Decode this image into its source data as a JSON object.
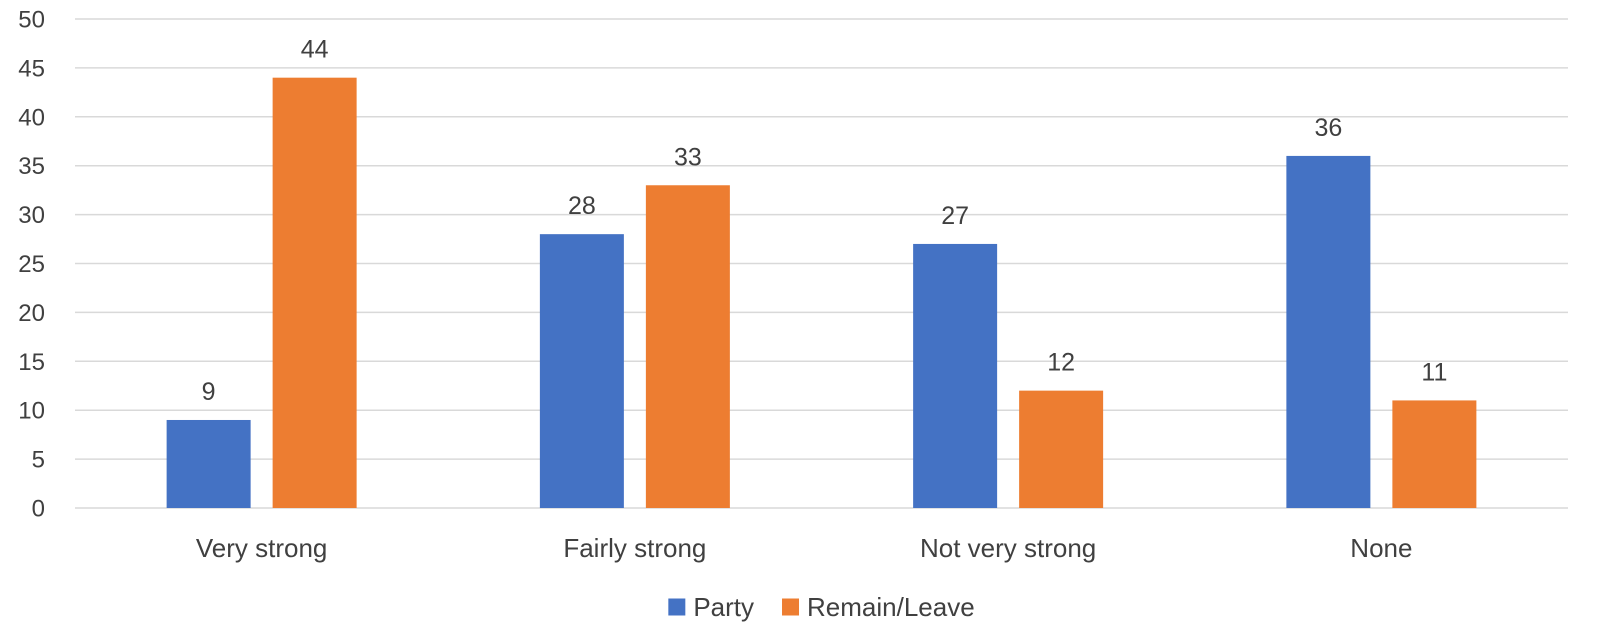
{
  "chart_data": {
    "type": "bar",
    "categories": [
      "Very strong",
      "Fairly strong",
      "Not very strong",
      "None"
    ],
    "series": [
      {
        "name": "Party",
        "values": [
          9,
          28,
          27,
          36
        ],
        "color": "#4472C4"
      },
      {
        "name": "Remain/Leave",
        "values": [
          44,
          33,
          12,
          11
        ],
        "color": "#ED7D31"
      }
    ],
    "ylim": [
      0,
      50
    ],
    "yticks": [
      0,
      5,
      10,
      15,
      20,
      25,
      30,
      35,
      40,
      45,
      50
    ],
    "grid": true,
    "legend_position": "bottom",
    "data_labels": true
  }
}
